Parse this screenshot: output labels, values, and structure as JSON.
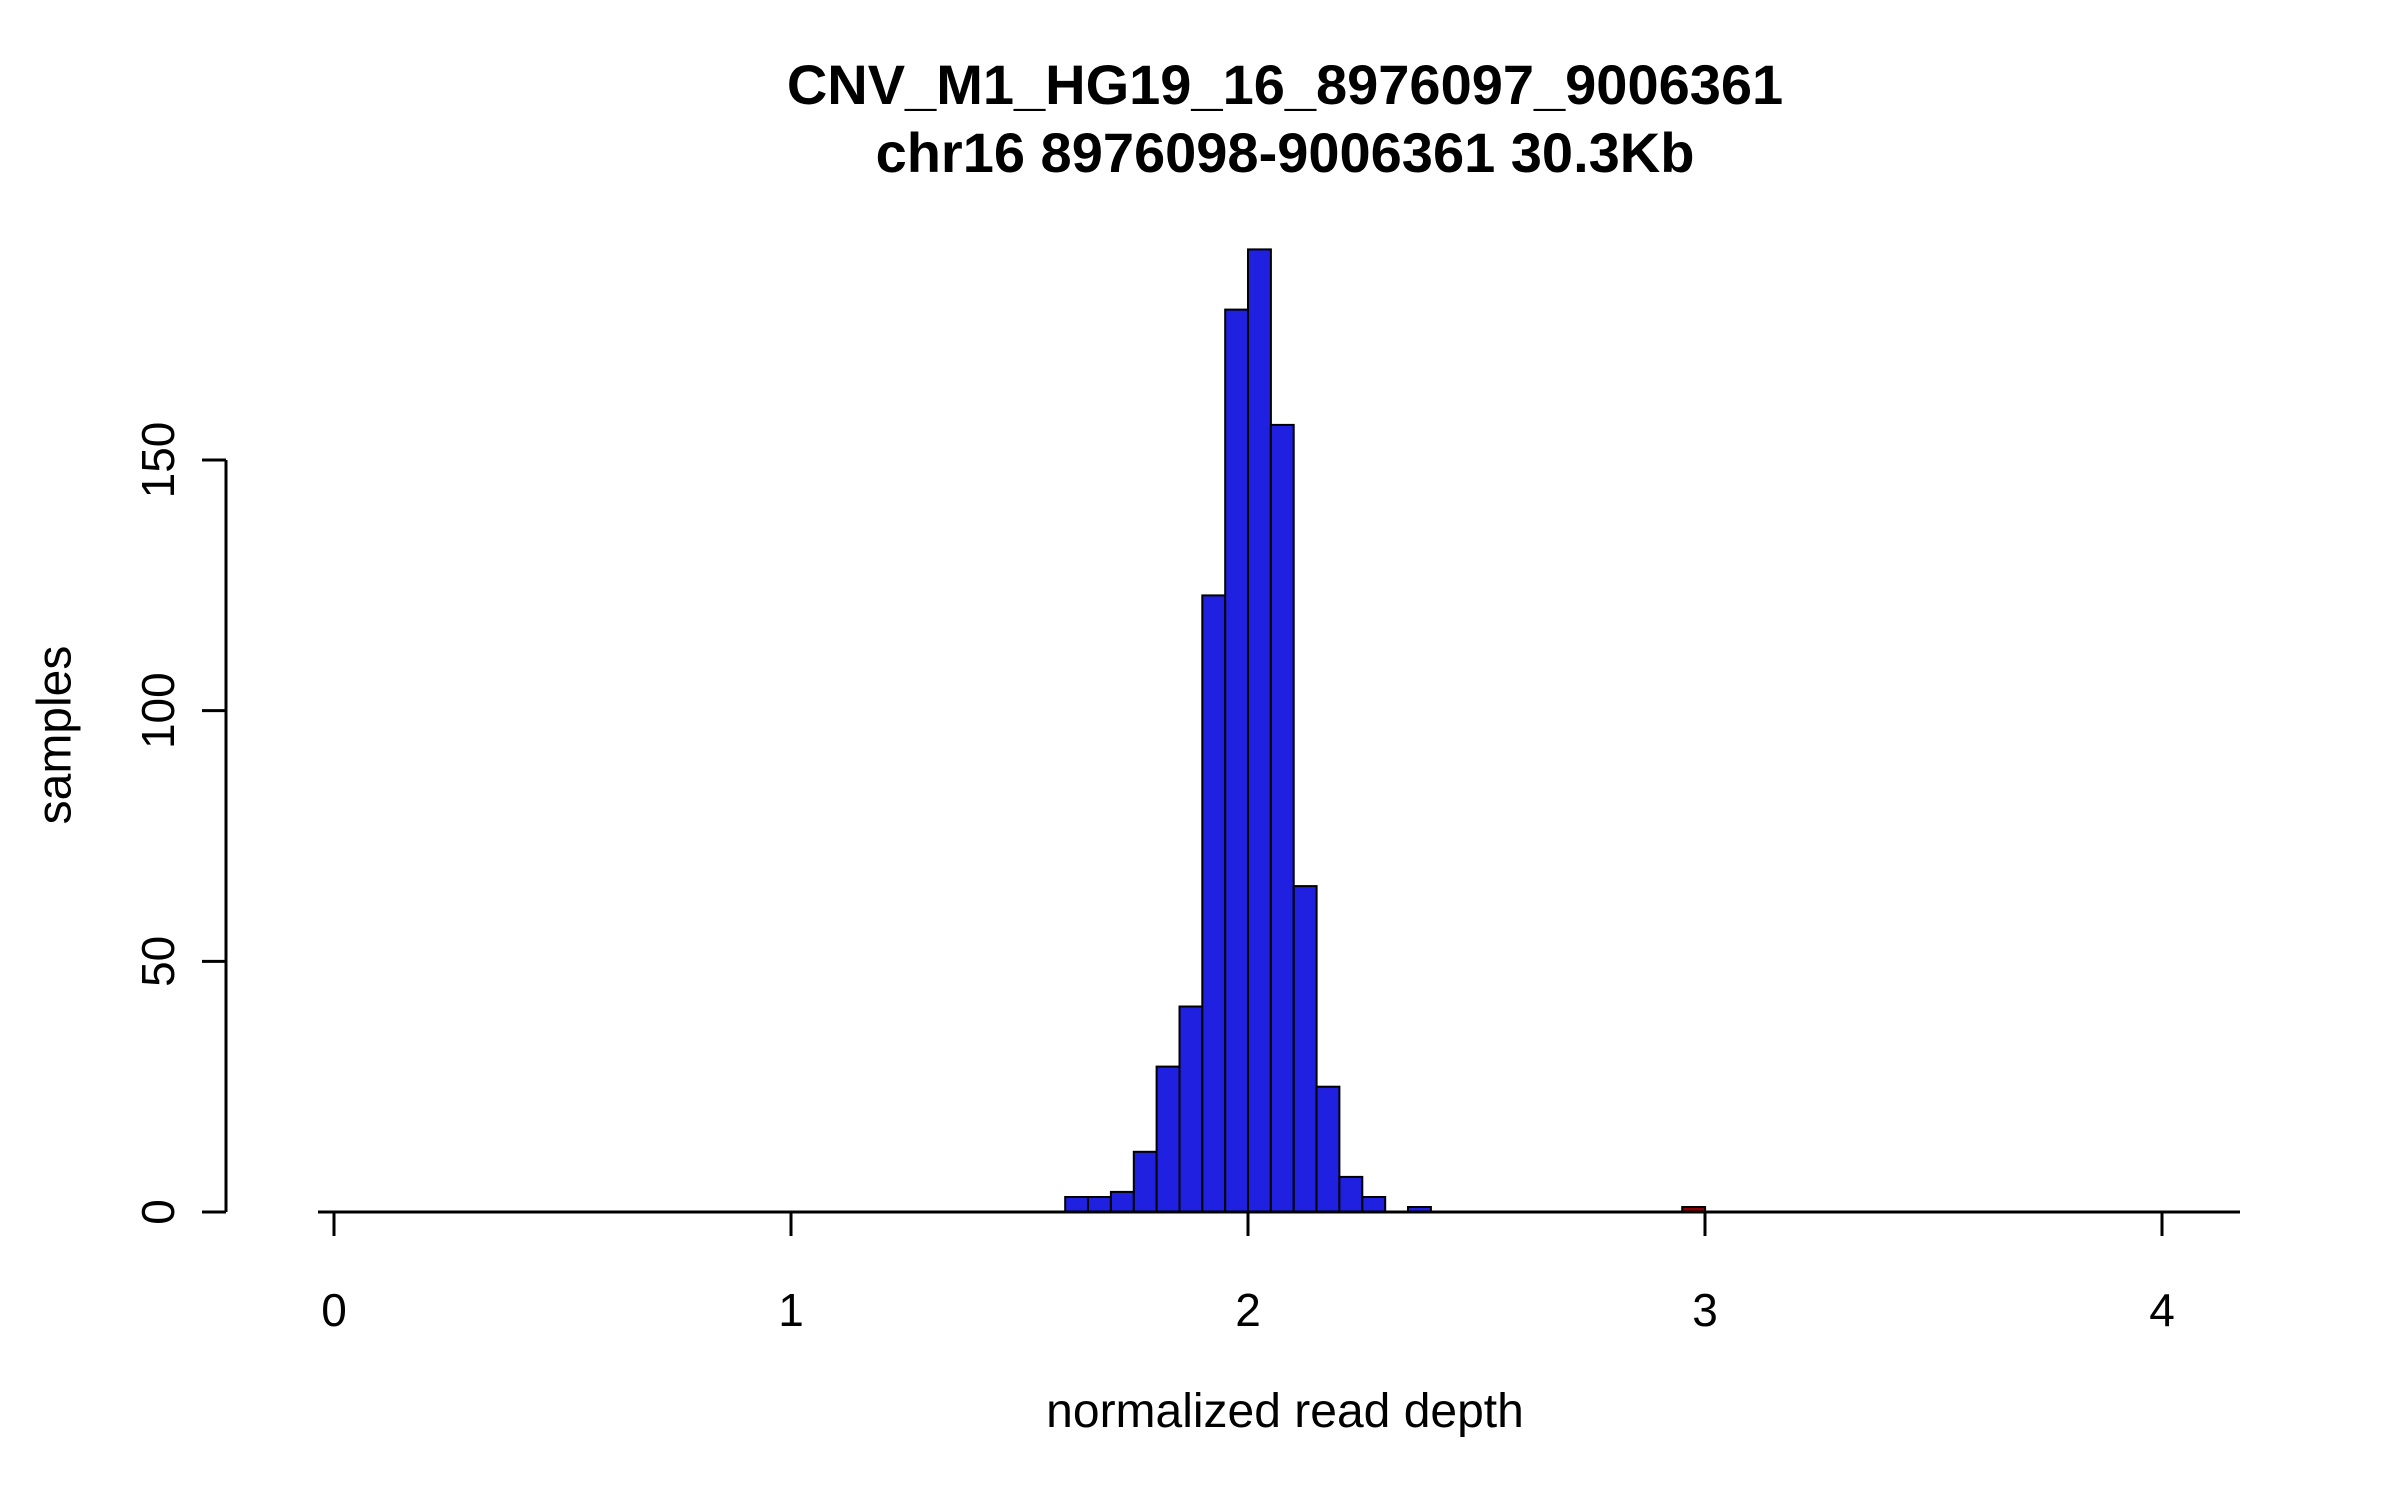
{
  "header": {
    "title": "CNV_M1_HG19_16_8976097_9006361",
    "subtitle": "chr16 8976098-9006361 30.3Kb"
  },
  "chart_data": {
    "type": "bar",
    "title": "CNV_M1_HG19_16_8976097_9006361",
    "subtitle": "chr16 8976098-9006361 30.3Kb",
    "xlabel": "normalized read depth",
    "ylabel": "samples",
    "xlim": [
      0,
      4.17
    ],
    "ylim": [
      0,
      195
    ],
    "grid": false,
    "legend": "none",
    "x_ticks": [
      0,
      1,
      2,
      3,
      4
    ],
    "y_ticks": [
      0,
      50,
      100,
      150
    ],
    "bin_width": 0.05,
    "bar_color": "#2020e0",
    "bar_border_color": "#000000",
    "highlight_color": "#8b0000",
    "axis_color": "#000000",
    "bins": [
      {
        "x0": 1.6,
        "count": 3
      },
      {
        "x0": 1.65,
        "count": 3
      },
      {
        "x0": 1.7,
        "count": 4
      },
      {
        "x0": 1.75,
        "count": 12
      },
      {
        "x0": 1.8,
        "count": 29
      },
      {
        "x0": 1.85,
        "count": 41
      },
      {
        "x0": 1.9,
        "count": 123
      },
      {
        "x0": 1.95,
        "count": 180
      },
      {
        "x0": 2.0,
        "count": 192
      },
      {
        "x0": 2.05,
        "count": 157
      },
      {
        "x0": 2.1,
        "count": 65
      },
      {
        "x0": 2.15,
        "count": 25
      },
      {
        "x0": 2.2,
        "count": 7
      },
      {
        "x0": 2.25,
        "count": 3
      },
      {
        "x0": 2.35,
        "count": 1
      },
      {
        "x0": 2.95,
        "count": 1,
        "color": "#8b0000"
      }
    ]
  }
}
